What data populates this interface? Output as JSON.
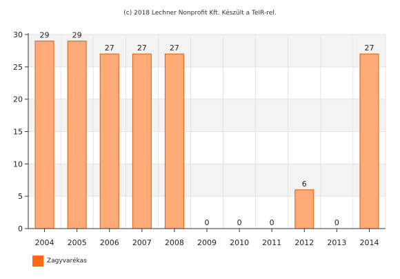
{
  "credit": "(c) 2018 Lechner Nonprofit Kft. Készült a TeIR-rel.",
  "chart_data": {
    "type": "bar",
    "categories": [
      "2004",
      "2005",
      "2006",
      "2007",
      "2008",
      "2009",
      "2010",
      "2011",
      "2012",
      "2013",
      "2014"
    ],
    "series": [
      {
        "name": "Zagyvarékas",
        "values": [
          29,
          29,
          27,
          27,
          27,
          0,
          0,
          0,
          6,
          0,
          27
        ]
      }
    ],
    "ylim": [
      0,
      30
    ],
    "yticks": [
      0,
      5,
      10,
      15,
      20,
      25,
      30
    ],
    "grid": true,
    "legend_position": "bottom-left",
    "colors": {
      "bar_fill": "#FFAA77",
      "bar_stroke": "#E06000",
      "legend_swatch": "#FF6A10",
      "band": "#F3F3F3",
      "axis": "#333333"
    }
  }
}
